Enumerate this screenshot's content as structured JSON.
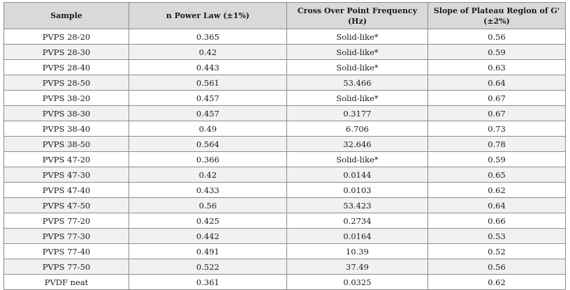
{
  "table": {
    "headers": [
      "Sample",
      "n Power Law (±1%)",
      "Cross Over Point Frequency (Hz)",
      "Slope of Plateau Region of G' (±2%)"
    ],
    "rows": [
      [
        "PVPS 28-20",
        "0.365",
        "Solid-like*",
        "0.56"
      ],
      [
        "PVPS 28-30",
        "0.42",
        "Solid-like*",
        "0.59"
      ],
      [
        "PVPS 28-40",
        "0.443",
        "Solid-like*",
        "0.63"
      ],
      [
        "PVPS 28-50",
        "0.561",
        "53.466",
        "0.64"
      ],
      [
        "PVPS 38-20",
        "0.457",
        "Solid-like*",
        "0.67"
      ],
      [
        "PVPS 38-30",
        "0.457",
        "0.3177",
        "0.67"
      ],
      [
        "PVPS 38-40",
        "0.49",
        "6.706",
        "0.73"
      ],
      [
        "PVPS 38-50",
        "0.564",
        "32.646",
        "0.78"
      ],
      [
        "PVPS 47-20",
        "0.366",
        "Solid-like*",
        "0.59"
      ],
      [
        "PVPS 47-30",
        "0.42",
        "0.0144",
        "0.65"
      ],
      [
        "PVPS 47-40",
        "0.433",
        "0.0103",
        "0.62"
      ],
      [
        "PVPS 47-50",
        "0.56",
        "53.423",
        "0.64"
      ],
      [
        "PVPS 77-20",
        "0.425",
        "0.2734",
        "0.66"
      ],
      [
        "PVPS 77-30",
        "0.442",
        "0.0164",
        "0.53"
      ],
      [
        "PVPS 77-40",
        "0.491",
        "10.39",
        "0.52"
      ],
      [
        "PVPS 77-50",
        "0.522",
        "37.49",
        "0.56"
      ],
      [
        "PVDF neat",
        "0.361",
        "0.0325",
        "0.62"
      ]
    ]
  }
}
